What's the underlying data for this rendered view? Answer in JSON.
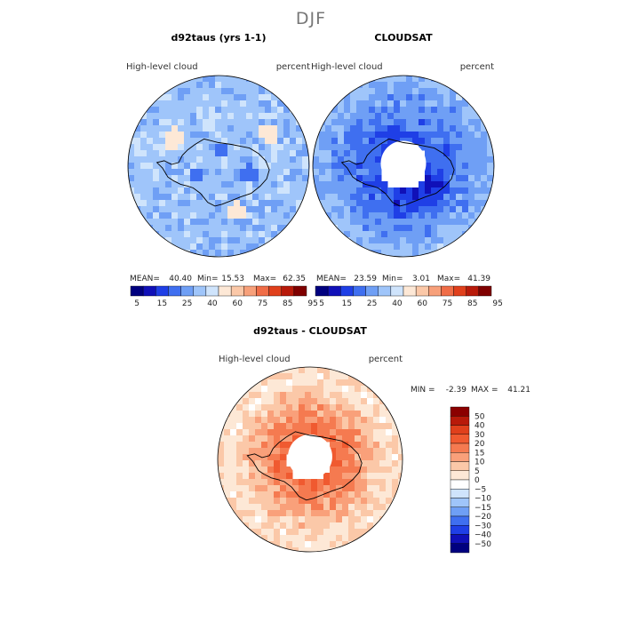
{
  "figure": {
    "main_title": "DJF"
  },
  "chart_data": [
    {
      "type": "heatmap",
      "projection": "south polar stereographic",
      "title": "d92taus (yrs 1-1)",
      "left_label": "High-level cloud",
      "right_label": "percent",
      "stats": {
        "mean_label": "MEAN=",
        "mean": "40.40",
        "min_label": "Min=",
        "min": "15.53",
        "max_label": "Max=",
        "max": "62.35"
      },
      "colorbar": {
        "orientation": "horizontal",
        "levels": [
          "5",
          "15",
          "25",
          "40",
          "60",
          "75",
          "85",
          "95"
        ],
        "colors": [
          "#00007f",
          "#1010b8",
          "#1f3fe6",
          "#3f6ff0",
          "#6f9ff5",
          "#9fc5fa",
          "#cfe4fc",
          "#fde8d6",
          "#fbc8a8",
          "#f7a07a",
          "#f06d47",
          "#e0401c",
          "#b81a0a",
          "#7f0000"
        ]
      },
      "field": {
        "background_value": 40,
        "blobs": [
          [
            -0.25,
            0.1,
            0.09,
            8
          ],
          [
            0.35,
            0.08,
            0.1,
            10
          ],
          [
            0.05,
            -0.2,
            0.08,
            33
          ],
          [
            -0.5,
            -0.3,
            0.12,
            55
          ],
          [
            0.55,
            -0.35,
            0.1,
            52
          ],
          [
            0.2,
            0.5,
            0.1,
            48
          ]
        ]
      }
    },
    {
      "type": "heatmap",
      "projection": "south polar stereographic",
      "title": "CLOUDSAT",
      "left_label": "High-level cloud",
      "right_label": "percent",
      "stats": {
        "mean_label": "MEAN=",
        "mean": "23.59",
        "min_label": "Min=",
        "min": "3.01",
        "max_label": "Max=",
        "max": "41.39"
      },
      "colorbar": {
        "orientation": "horizontal",
        "levels": [
          "5",
          "15",
          "25",
          "40",
          "60",
          "75",
          "85",
          "95"
        ],
        "colors": [
          "#00007f",
          "#1010b8",
          "#1f3fe6",
          "#3f6ff0",
          "#6f9ff5",
          "#9fc5fa",
          "#cfe4fc",
          "#fde8d6",
          "#fbc8a8",
          "#f7a07a",
          "#f06d47",
          "#e0401c",
          "#b81a0a",
          "#7f0000"
        ]
      },
      "field": {
        "missing_pole_cap": true
      }
    },
    {
      "type": "heatmap",
      "projection": "south polar stereographic",
      "title": "d92taus - CLOUDSAT",
      "left_label": "High-level cloud",
      "right_label": "percent",
      "stats": {
        "min_label": "MIN =",
        "min": "-2.39",
        "max_label": "MAX =",
        "max": "41.21"
      },
      "colorbar": {
        "orientation": "vertical",
        "levels": [
          "50",
          "40",
          "30",
          "20",
          "15",
          "10",
          "5",
          "0",
          "−5",
          "−10",
          "−15",
          "−20",
          "−30",
          "−40",
          "−50"
        ],
        "colors": [
          "#8b0000",
          "#b81a0a",
          "#e0401c",
          "#f05a30",
          "#f57a50",
          "#f9a07a",
          "#fbc8a8",
          "#fde8d6",
          "#ffffff",
          "#cfe4fc",
          "#9fc5fa",
          "#6f9ff5",
          "#3f6ff0",
          "#1f3fe6",
          "#1010b8",
          "#00007f"
        ]
      },
      "field": {
        "missing_pole_cap": true
      }
    }
  ]
}
